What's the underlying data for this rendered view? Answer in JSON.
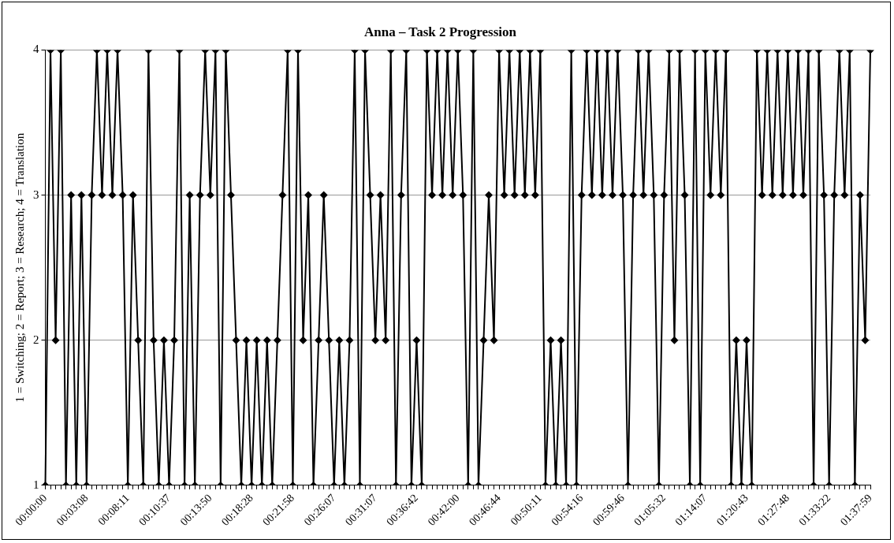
{
  "chart_data": {
    "type": "line",
    "title": "Anna – Task 2 Progression",
    "ylabel": "1 = Switching; 2 = Report; 3 = Research; 4 = Translation",
    "categories": [
      "00:00:00",
      null,
      null,
      null,
      null,
      null,
      null,
      null,
      "00:03:08",
      null,
      null,
      null,
      null,
      null,
      null,
      null,
      "00:08:11",
      null,
      null,
      null,
      null,
      null,
      null,
      null,
      "00:10:37",
      null,
      null,
      null,
      null,
      null,
      null,
      null,
      "00:13:50",
      null,
      null,
      null,
      null,
      null,
      null,
      null,
      "00:18:28",
      null,
      null,
      null,
      null,
      null,
      null,
      null,
      "00:21:58",
      null,
      null,
      null,
      null,
      null,
      null,
      null,
      "00:26:07",
      null,
      null,
      null,
      null,
      null,
      null,
      null,
      "00:31:07",
      null,
      null,
      null,
      null,
      null,
      null,
      null,
      "00:36:42",
      null,
      null,
      null,
      null,
      null,
      null,
      null,
      "00:42:00",
      null,
      null,
      null,
      null,
      null,
      null,
      null,
      "00:46:44",
      null,
      null,
      null,
      null,
      null,
      null,
      null,
      "00:50:11",
      null,
      null,
      null,
      null,
      null,
      null,
      null,
      "00:54:16",
      null,
      null,
      null,
      null,
      null,
      null,
      null,
      "00:59:46",
      null,
      null,
      null,
      null,
      null,
      null,
      null,
      "01:05:32",
      null,
      null,
      null,
      null,
      null,
      null,
      null,
      "01:14:07",
      null,
      null,
      null,
      null,
      null,
      null,
      null,
      "01:20:43",
      null,
      null,
      null,
      null,
      null,
      null,
      null,
      "01:27:48",
      null,
      null,
      null,
      null,
      null,
      null,
      null,
      "01:33:22",
      null,
      null,
      null,
      null,
      null,
      null,
      null,
      "01:37:59"
    ],
    "series": [
      {
        "color": "#000000",
        "values": [
          1,
          4,
          2,
          4,
          1,
          3,
          1,
          3,
          1,
          3,
          4,
          3,
          4,
          3,
          4,
          3,
          1,
          3,
          2,
          1,
          4,
          2,
          1,
          2,
          1,
          2,
          4,
          1,
          3,
          1,
          3,
          4,
          3,
          4,
          1,
          4,
          3,
          2,
          1,
          2,
          1,
          2,
          1,
          2,
          1,
          2,
          3,
          4,
          1,
          4,
          2,
          3,
          1,
          2,
          3,
          2,
          1,
          2,
          1,
          2,
          4,
          1,
          4,
          3,
          2,
          3,
          2,
          4,
          1,
          3,
          4,
          1,
          2,
          1,
          4,
          3,
          4,
          3,
          4,
          3,
          4,
          3,
          1,
          4,
          1,
          2,
          3,
          2,
          4,
          3,
          4,
          3,
          4,
          3,
          4,
          3,
          4,
          1,
          2,
          1,
          2,
          1,
          4,
          1,
          3,
          4,
          3,
          4,
          3,
          4,
          3,
          4,
          3,
          1,
          3,
          4,
          3,
          4,
          3,
          1,
          3,
          4,
          2,
          4,
          3,
          1,
          4,
          1,
          4,
          3,
          4,
          3,
          4,
          1,
          2,
          1,
          2,
          1,
          4,
          3,
          4,
          3,
          4,
          3,
          4,
          3,
          4,
          3,
          4,
          1,
          4,
          3,
          1,
          3,
          4,
          3,
          4,
          1,
          3,
          2,
          4
        ]
      }
    ],
    "ylim": [
      1,
      4
    ],
    "yticks": [
      1,
      2,
      3,
      4
    ],
    "grid": "y",
    "legend": false,
    "marker": "diamond",
    "line_style": "solid"
  }
}
